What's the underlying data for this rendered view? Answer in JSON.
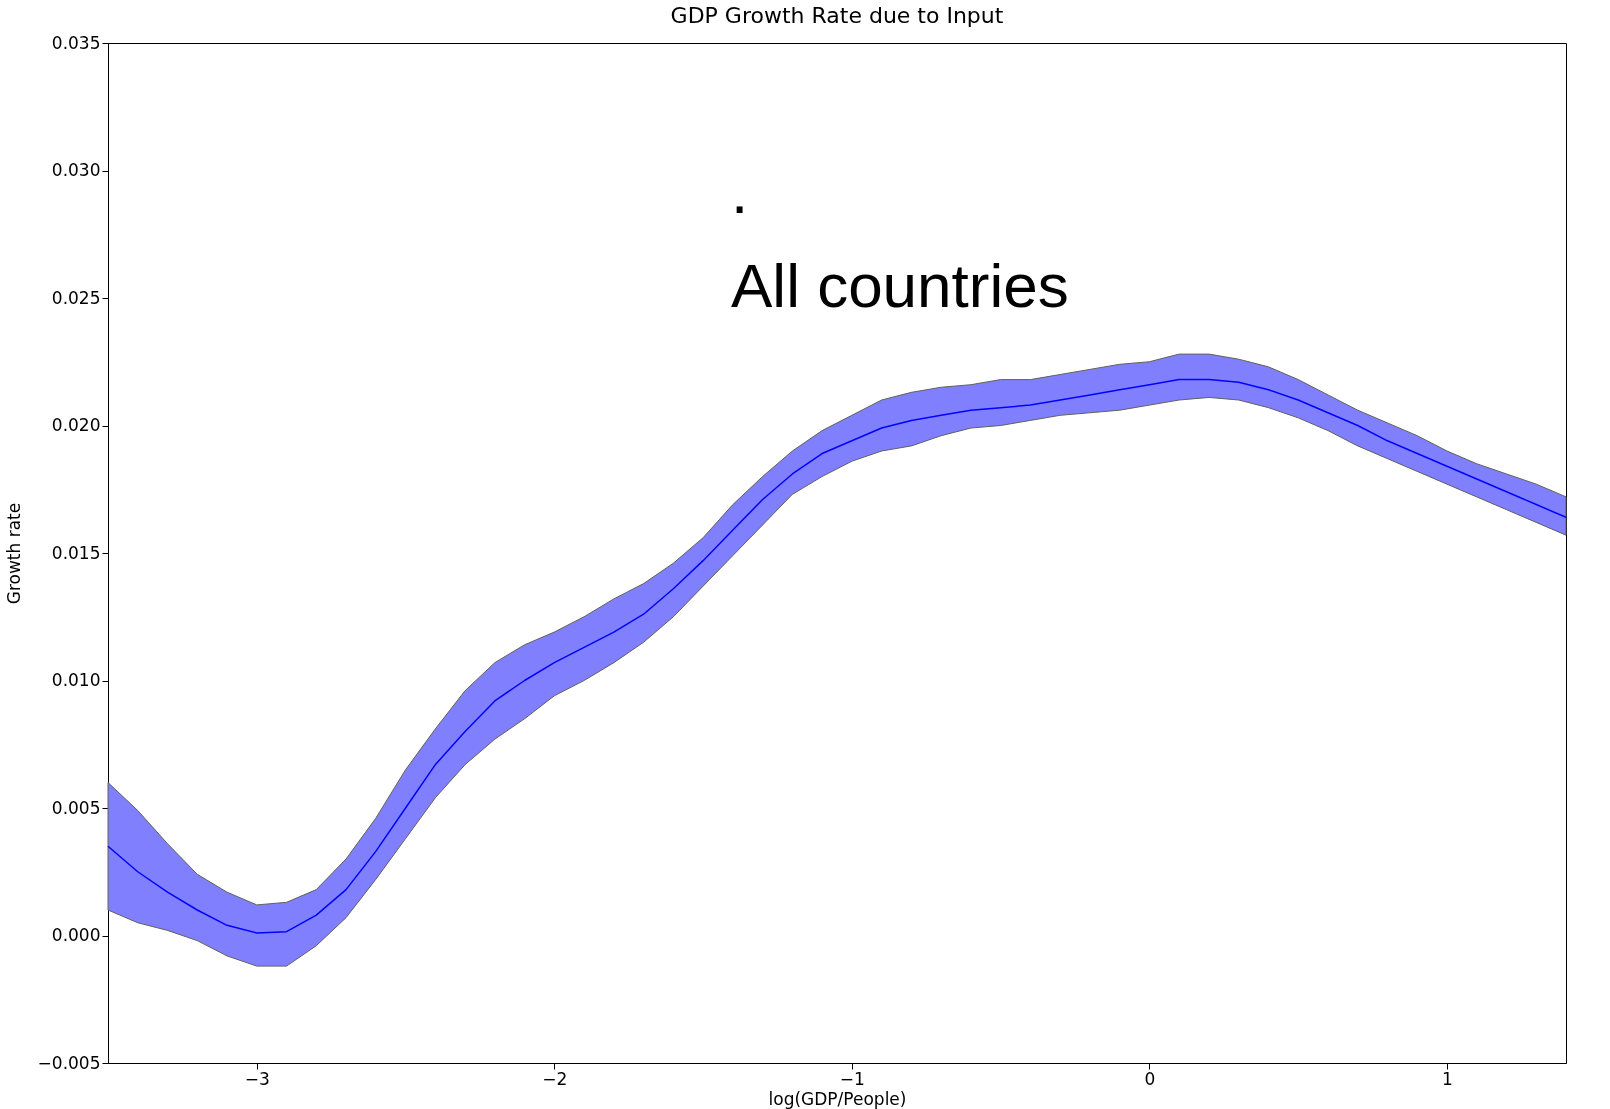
{
  "chart_data": {
    "type": "line",
    "title": "GDP Growth Rate due to Input",
    "xlabel": "log(GDP/People)",
    "ylabel": "Growth rate",
    "annotations": [
      ".",
      "All countries"
    ],
    "xlim": [
      -3.5,
      1.4
    ],
    "ylim": [
      -0.005,
      0.035
    ],
    "xticks": [
      {
        "value": -3,
        "label": "−3"
      },
      {
        "value": -2,
        "label": "−2"
      },
      {
        "value": -1,
        "label": "−1"
      },
      0,
      1
    ],
    "yticks": [
      {
        "value": -0.005,
        "label": "−0.005"
      },
      {
        "value": 0,
        "label": "0.000"
      },
      0.005,
      {
        "value": 0.01,
        "label": "0.010"
      },
      0.015,
      {
        "value": 0.02,
        "label": "0.020"
      },
      0.025,
      {
        "value": 0.03,
        "label": "0.030"
      },
      0.035
    ],
    "grid": false,
    "x": [
      -3.5,
      -3.4,
      -3.3,
      -3.2,
      -3.1,
      -3.0,
      -2.9,
      -2.8,
      -2.7,
      -2.6,
      -2.5,
      -2.4,
      -2.3,
      -2.2,
      -2.1,
      -2.0,
      -1.9,
      -1.8,
      -1.7,
      -1.6,
      -1.5,
      -1.4,
      -1.3,
      -1.2,
      -1.1,
      -1.0,
      -0.9,
      -0.8,
      -0.7,
      -0.6,
      -0.5,
      -0.4,
      -0.3,
      -0.2,
      -0.1,
      0,
      0.1,
      0.2,
      0.3,
      0.4,
      0.5,
      0.6,
      0.7,
      0.8,
      0.9,
      1.0,
      1.1,
      1.2,
      1.3,
      1.4
    ],
    "series": [
      {
        "color": "#0000ff",
        "values": [
          0.0035,
          0.0025,
          0.0017,
          0.001,
          0.0004,
          0.0001,
          0.00015,
          0.0008,
          0.0018,
          0.0033,
          0.005,
          0.0067,
          0.008,
          0.0092,
          0.01,
          0.0107,
          0.0113,
          0.0119,
          0.0126,
          0.0136,
          0.0147,
          0.0159,
          0.0171,
          0.0181,
          0.0189,
          0.0194,
          0.0199,
          0.0202,
          0.0204,
          0.0206,
          0.0207,
          0.0208,
          0.021,
          0.0212,
          0.0214,
          0.0216,
          0.0218,
          0.0218,
          0.0217,
          0.0214,
          0.021,
          0.0205,
          0.02,
          0.0194,
          0.0189,
          0.0184,
          0.0179,
          0.0174,
          0.0169,
          0.0164
        ],
        "upper": [
          0.006,
          0.0049,
          0.0036,
          0.0024,
          0.0017,
          0.0012,
          0.0013,
          0.0018,
          0.003,
          0.0046,
          0.0065,
          0.0081,
          0.0096,
          0.0107,
          0.0114,
          0.0119,
          0.0125,
          0.0132,
          0.0138,
          0.0146,
          0.0156,
          0.0169,
          0.018,
          0.019,
          0.0198,
          0.0204,
          0.021,
          0.0213,
          0.0215,
          0.0216,
          0.0218,
          0.0218,
          0.022,
          0.0222,
          0.0224,
          0.0225,
          0.0228,
          0.0228,
          0.0226,
          0.0223,
          0.0218,
          0.0212,
          0.0206,
          0.0201,
          0.0196,
          0.019,
          0.0185,
          0.0181,
          0.0177,
          0.0172
        ],
        "lower": [
          0.001,
          0.0005,
          0.0002,
          -0.0002,
          -0.0008,
          -0.0012,
          -0.0012,
          -0.0004,
          0.0007,
          0.0022,
          0.0038,
          0.0054,
          0.0067,
          0.0077,
          0.0085,
          0.0094,
          0.01,
          0.0107,
          0.0115,
          0.0125,
          0.0137,
          0.0149,
          0.0161,
          0.0173,
          0.018,
          0.0186,
          0.019,
          0.0192,
          0.0196,
          0.0199,
          0.02,
          0.0202,
          0.0204,
          0.0205,
          0.0206,
          0.0208,
          0.021,
          0.0211,
          0.021,
          0.0207,
          0.0203,
          0.0198,
          0.0192,
          0.0187,
          0.0182,
          0.0177,
          0.0172,
          0.0167,
          0.0162,
          0.0157
        ]
      }
    ]
  }
}
